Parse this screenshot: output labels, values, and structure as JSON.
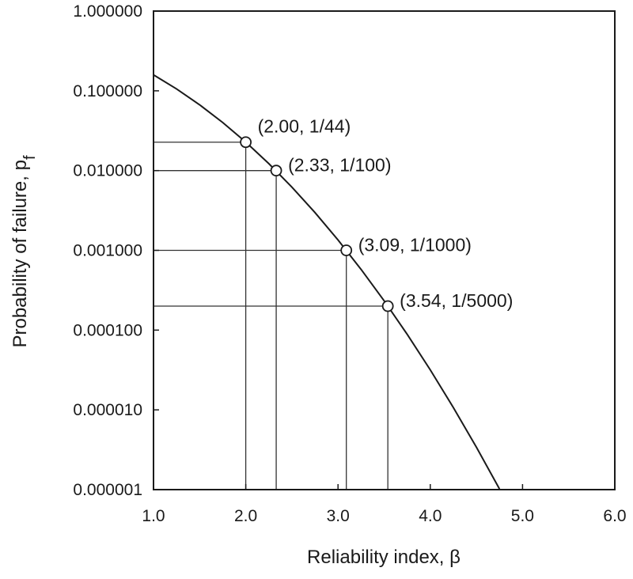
{
  "chart_data": {
    "type": "line",
    "xlabel": "Reliability index, β",
    "ylabel": "Probability of failure, p",
    "ylabel_subscript": "f",
    "xlim": [
      1.0,
      6.0
    ],
    "ylim": [
      1e-06,
      1.0
    ],
    "yscale": "log",
    "grid": false,
    "x_ticks": [
      {
        "value": 1.0,
        "label": "1.0"
      },
      {
        "value": 2.0,
        "label": "2.0"
      },
      {
        "value": 3.0,
        "label": "3.0"
      },
      {
        "value": 4.0,
        "label": "4.0"
      },
      {
        "value": 5.0,
        "label": "5.0"
      },
      {
        "value": 6.0,
        "label": "6.0"
      }
    ],
    "y_ticks": [
      {
        "value": 1.0,
        "label": "1.000000"
      },
      {
        "value": 0.1,
        "label": "0.100000"
      },
      {
        "value": 0.01,
        "label": "0.010000"
      },
      {
        "value": 0.001,
        "label": "0.001000"
      },
      {
        "value": 0.0001,
        "label": "0.000100"
      },
      {
        "value": 1e-05,
        "label": "0.000010"
      },
      {
        "value": 1e-06,
        "label": "0.000001"
      }
    ],
    "series": [
      {
        "x": [
          1.0,
          1.25,
          1.5,
          1.75,
          2.0,
          2.25,
          2.5,
          2.75,
          3.0,
          3.25,
          3.5,
          3.75,
          4.0,
          4.25,
          4.5,
          4.75
        ],
        "y": [
          0.1587,
          0.1056,
          0.0668,
          0.0401,
          0.02275,
          0.01222,
          0.00621,
          0.00298,
          0.00135,
          0.000577,
          0.000233,
          8.84e-05,
          3.17e-05,
          1.07e-05,
          3.4e-06,
          1.02e-06
        ]
      }
    ],
    "highlighted_points": [
      {
        "x": 2.0,
        "y": 0.022727,
        "label": "(2.00, 1/44)"
      },
      {
        "x": 2.33,
        "y": 0.01,
        "label": "(2.33, 1/100)"
      },
      {
        "x": 3.09,
        "y": 0.001,
        "label": "(3.09, 1/1000)"
      },
      {
        "x": 3.54,
        "y": 0.0002,
        "label": "(3.54, 1/5000)"
      }
    ]
  }
}
